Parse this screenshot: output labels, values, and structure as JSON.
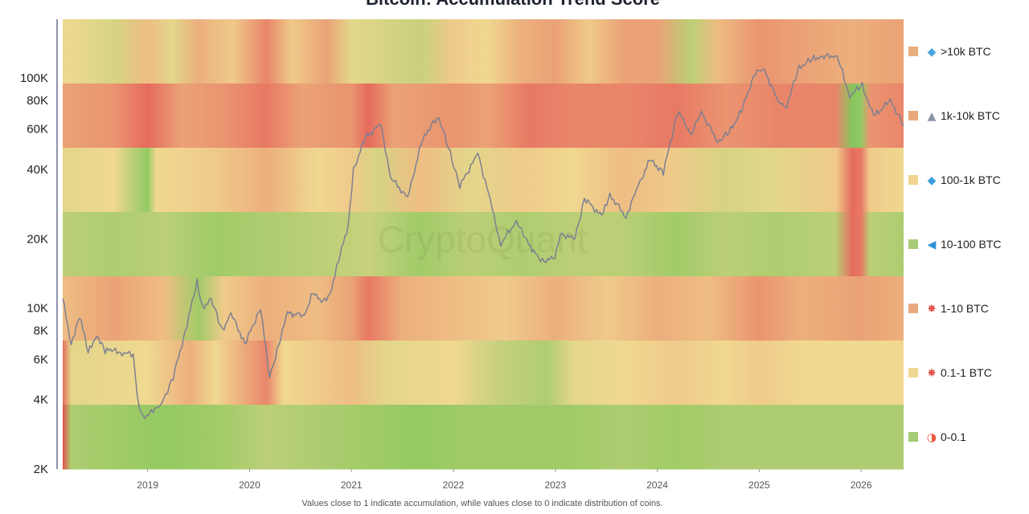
{
  "chart_data": {
    "type": "heatmap",
    "title": "Bitcoin: Accumulation Trend Score",
    "footnote": "Values close to 1 indicate accumulation, while values close to 0 indicate distribution of coins.",
    "watermark": "CryptoQuant",
    "x_range": [
      "2018-03",
      "2026-06"
    ],
    "x_ticks": [
      "2019",
      "2020",
      "2021",
      "2022",
      "2023",
      "2024",
      "2025",
      "2026"
    ],
    "y_scale": "log",
    "y_range": [
      2000,
      180000
    ],
    "y_ticks": [
      {
        "value": 2000,
        "label": "2K"
      },
      {
        "value": 4000,
        "label": "4K"
      },
      {
        "value": 6000,
        "label": "6K"
      },
      {
        "value": 8000,
        "label": "8K"
      },
      {
        "value": 10000,
        "label": "10K"
      },
      {
        "value": 20000,
        "label": "20K"
      },
      {
        "value": 40000,
        "label": "40K"
      },
      {
        "value": 60000,
        "label": "60K"
      },
      {
        "value": 80000,
        "label": "80K"
      },
      {
        "value": 100000,
        "label": "100K"
      }
    ],
    "color_scale": {
      "low": "#e45050",
      "mid": "#f0d890",
      "high": "#6cc24f",
      "domain": [
        0,
        1
      ]
    },
    "rows": [
      {
        "label": ">10k BTC",
        "icon": "whale-icon",
        "legend_color": "#e8ae7e",
        "keys": [
          [
            "2018-03",
            0.5
          ],
          [
            "2018-09",
            0.6
          ],
          [
            "2019-01",
            0.4
          ],
          [
            "2019-04",
            0.55
          ],
          [
            "2019-07",
            0.35
          ],
          [
            "2019-11",
            0.45
          ],
          [
            "2020-03",
            0.2
          ],
          [
            "2020-06",
            0.45
          ],
          [
            "2020-10",
            0.3
          ],
          [
            "2021-01",
            0.55
          ],
          [
            "2021-05",
            0.6
          ],
          [
            "2021-09",
            0.65
          ],
          [
            "2022-01",
            0.45
          ],
          [
            "2022-05",
            0.5
          ],
          [
            "2022-09",
            0.35
          ],
          [
            "2023-01",
            0.3
          ],
          [
            "2023-05",
            0.45
          ],
          [
            "2023-09",
            0.3
          ],
          [
            "2024-01",
            0.3
          ],
          [
            "2024-05",
            0.7
          ],
          [
            "2024-08",
            0.4
          ],
          [
            "2025-01",
            0.25
          ],
          [
            "2025-06",
            0.3
          ],
          [
            "2025-12",
            0.35
          ],
          [
            "2026-06",
            0.3
          ]
        ]
      },
      {
        "label": "1k-10k BTC",
        "icon": "shark-icon",
        "legend_color": "#e8a87a",
        "keys": [
          [
            "2018-03",
            0.3
          ],
          [
            "2018-09",
            0.25
          ],
          [
            "2019-01",
            0.1
          ],
          [
            "2019-05",
            0.3
          ],
          [
            "2019-10",
            0.25
          ],
          [
            "2020-03",
            0.15
          ],
          [
            "2020-07",
            0.3
          ],
          [
            "2021-01",
            0.25
          ],
          [
            "2021-03",
            0.1
          ],
          [
            "2021-06",
            0.3
          ],
          [
            "2022-01",
            0.25
          ],
          [
            "2022-05",
            0.3
          ],
          [
            "2022-10",
            0.15
          ],
          [
            "2023-03",
            0.2
          ],
          [
            "2023-09",
            0.2
          ],
          [
            "2024-03",
            0.15
          ],
          [
            "2024-09",
            0.25
          ],
          [
            "2025-03",
            0.2
          ],
          [
            "2025-10",
            0.2
          ],
          [
            "2025-12",
            0.9
          ],
          [
            "2026-01",
            0.85
          ],
          [
            "2026-02",
            0.25
          ],
          [
            "2026-06",
            0.2
          ]
        ]
      },
      {
        "label": "100-1k BTC",
        "icon": "dolphin-icon",
        "legend_color": "#f0d48f",
        "keys": [
          [
            "2018-03",
            0.55
          ],
          [
            "2018-09",
            0.5
          ],
          [
            "2019-01",
            0.85
          ],
          [
            "2019-02",
            0.5
          ],
          [
            "2019-09",
            0.45
          ],
          [
            "2020-03",
            0.35
          ],
          [
            "2020-09",
            0.5
          ],
          [
            "2021-01",
            0.45
          ],
          [
            "2021-04",
            0.6
          ],
          [
            "2021-09",
            0.4
          ],
          [
            "2022-03",
            0.55
          ],
          [
            "2022-09",
            0.45
          ],
          [
            "2023-03",
            0.5
          ],
          [
            "2023-09",
            0.4
          ],
          [
            "2024-03",
            0.45
          ],
          [
            "2024-09",
            0.6
          ],
          [
            "2025-03",
            0.55
          ],
          [
            "2025-10",
            0.45
          ],
          [
            "2025-12",
            0.1
          ],
          [
            "2026-01",
            0.15
          ],
          [
            "2026-02",
            0.45
          ],
          [
            "2026-06",
            0.5
          ]
        ]
      },
      {
        "label": "10-100 BTC",
        "icon": "fish-icon",
        "legend_color": "#a8cc78",
        "keys": [
          [
            "2018-03",
            0.7
          ],
          [
            "2018-09",
            0.75
          ],
          [
            "2019-03",
            0.7
          ],
          [
            "2019-09",
            0.8
          ],
          [
            "2020-03",
            0.75
          ],
          [
            "2020-09",
            0.7
          ],
          [
            "2021-03",
            0.65
          ],
          [
            "2021-09",
            0.8
          ],
          [
            "2022-03",
            0.7
          ],
          [
            "2022-09",
            0.75
          ],
          [
            "2023-03",
            0.7
          ],
          [
            "2023-09",
            0.7
          ],
          [
            "2024-03",
            0.8
          ],
          [
            "2024-09",
            0.7
          ],
          [
            "2025-03",
            0.75
          ],
          [
            "2025-10",
            0.7
          ],
          [
            "2025-12",
            0.1
          ],
          [
            "2026-01",
            0.15
          ],
          [
            "2026-02",
            0.7
          ],
          [
            "2026-06",
            0.75
          ]
        ]
      },
      {
        "label": "1-10 BTC",
        "icon": "crab-icon",
        "legend_color": "#e8a880",
        "keys": [
          [
            "2018-03",
            0.4
          ],
          [
            "2018-09",
            0.3
          ],
          [
            "2019-03",
            0.4
          ],
          [
            "2019-07",
            0.8
          ],
          [
            "2019-10",
            0.45
          ],
          [
            "2020-03",
            0.35
          ],
          [
            "2020-09",
            0.4
          ],
          [
            "2021-01",
            0.3
          ],
          [
            "2021-03",
            0.15
          ],
          [
            "2021-07",
            0.35
          ],
          [
            "2022-01",
            0.4
          ],
          [
            "2022-07",
            0.45
          ],
          [
            "2023-01",
            0.35
          ],
          [
            "2023-07",
            0.45
          ],
          [
            "2024-01",
            0.35
          ],
          [
            "2024-07",
            0.4
          ],
          [
            "2025-01",
            0.25
          ],
          [
            "2025-06",
            0.35
          ],
          [
            "2026-01",
            0.3
          ],
          [
            "2026-06",
            0.35
          ]
        ]
      },
      {
        "label": "0.1-1 BTC",
        "icon": "crab-icon",
        "legend_color": "#f0d892",
        "keys": [
          [
            "2018-03",
            0.1
          ],
          [
            "2018-04",
            0.55
          ],
          [
            "2019-01",
            0.5
          ],
          [
            "2019-06",
            0.35
          ],
          [
            "2019-09",
            0.5
          ],
          [
            "2020-03",
            0.2
          ],
          [
            "2020-05",
            0.5
          ],
          [
            "2021-01",
            0.4
          ],
          [
            "2021-05",
            0.55
          ],
          [
            "2022-01",
            0.5
          ],
          [
            "2022-06",
            0.65
          ],
          [
            "2022-12",
            0.75
          ],
          [
            "2023-03",
            0.55
          ],
          [
            "2023-09",
            0.5
          ],
          [
            "2024-03",
            0.45
          ],
          [
            "2024-09",
            0.5
          ],
          [
            "2025-01",
            0.45
          ],
          [
            "2025-06",
            0.5
          ],
          [
            "2026-06",
            0.5
          ]
        ]
      },
      {
        "label": "0-0.1",
        "icon": "shrimp-icon",
        "legend_color": "#a4cc74",
        "keys": [
          [
            "2018-03",
            0.0
          ],
          [
            "2018-04",
            0.75
          ],
          [
            "2018-09",
            0.8
          ],
          [
            "2019-03",
            0.85
          ],
          [
            "2019-09",
            0.8
          ],
          [
            "2020-03",
            0.7
          ],
          [
            "2020-09",
            0.75
          ],
          [
            "2021-03",
            0.8
          ],
          [
            "2021-09",
            0.85
          ],
          [
            "2022-03",
            0.8
          ],
          [
            "2022-09",
            0.8
          ],
          [
            "2023-03",
            0.8
          ],
          [
            "2023-09",
            0.75
          ],
          [
            "2024-03",
            0.8
          ],
          [
            "2024-09",
            0.75
          ],
          [
            "2025-03",
            0.75
          ],
          [
            "2025-09",
            0.75
          ],
          [
            "2026-06",
            0.75
          ]
        ]
      }
    ],
    "price_series": {
      "color": "#7d7f92",
      "points": [
        [
          "2018-03-01",
          11000
        ],
        [
          "2018-04-01",
          7000
        ],
        [
          "2018-05-01",
          9300
        ],
        [
          "2018-06-01",
          6400
        ],
        [
          "2018-07-01",
          7700
        ],
        [
          "2018-08-01",
          6500
        ],
        [
          "2018-09-01",
          6600
        ],
        [
          "2018-10-01",
          6400
        ],
        [
          "2018-11-10",
          6300
        ],
        [
          "2018-11-25",
          4000
        ],
        [
          "2018-12-15",
          3300
        ],
        [
          "2019-01-15",
          3600
        ],
        [
          "2019-02-15",
          3700
        ],
        [
          "2019-04-01",
          5000
        ],
        [
          "2019-05-15",
          8000
        ],
        [
          "2019-06-26",
          13000
        ],
        [
          "2019-07-15",
          10000
        ],
        [
          "2019-08-15",
          11000
        ],
        [
          "2019-09-25",
          8000
        ],
        [
          "2019-10-26",
          9500
        ],
        [
          "2019-12-15",
          7000
        ],
        [
          "2020-02-10",
          10000
        ],
        [
          "2020-03-12",
          5000
        ],
        [
          "2020-04-15",
          7000
        ],
        [
          "2020-05-15",
          9500
        ],
        [
          "2020-07-15",
          9300
        ],
        [
          "2020-08-15",
          11800
        ],
        [
          "2020-09-15",
          10500
        ],
        [
          "2020-10-15",
          11500
        ],
        [
          "2020-11-15",
          16000
        ],
        [
          "2020-12-20",
          23000
        ],
        [
          "2021-01-08",
          40000
        ],
        [
          "2021-02-20",
          55000
        ],
        [
          "2021-04-14",
          63000
        ],
        [
          "2021-05-20",
          37000
        ],
        [
          "2021-07-20",
          30000
        ],
        [
          "2021-09-07",
          52000
        ],
        [
          "2021-10-20",
          65000
        ],
        [
          "2021-11-10",
          67000
        ],
        [
          "2021-12-20",
          47000
        ],
        [
          "2022-01-24",
          34000
        ],
        [
          "2022-03-28",
          47000
        ],
        [
          "2022-05-12",
          29000
        ],
        [
          "2022-06-18",
          19000
        ],
        [
          "2022-08-14",
          24000
        ],
        [
          "2022-09-15",
          20000
        ],
        [
          "2022-11-09",
          16000
        ],
        [
          "2022-12-30",
          16500
        ],
        [
          "2023-01-20",
          21000
        ],
        [
          "2023-03-10",
          20000
        ],
        [
          "2023-04-14",
          30000
        ],
        [
          "2023-06-15",
          25000
        ],
        [
          "2023-07-14",
          31000
        ],
        [
          "2023-09-11",
          25000
        ],
        [
          "2023-10-24",
          34000
        ],
        [
          "2023-12-05",
          44000
        ],
        [
          "2024-01-23",
          39000
        ],
        [
          "2024-03-14",
          72000
        ],
        [
          "2024-05-01",
          57000
        ],
        [
          "2024-06-07",
          71000
        ],
        [
          "2024-08-05",
          53000
        ],
        [
          "2024-09-15",
          58000
        ],
        [
          "2024-10-29",
          72000
        ],
        [
          "2024-12-17",
          106000
        ],
        [
          "2025-01-20",
          108000
        ],
        [
          "2025-03-10",
          78000
        ],
        [
          "2025-04-08",
          76000
        ],
        [
          "2025-05-22",
          111000
        ],
        [
          "2025-07-14",
          122000
        ],
        [
          "2025-08-14",
          124000
        ],
        [
          "2025-10-06",
          125000
        ],
        [
          "2025-11-21",
          84000
        ],
        [
          "2026-01-05",
          93000
        ],
        [
          "2026-02-15",
          68000
        ],
        [
          "2026-04-15",
          80000
        ],
        [
          "2026-06-01",
          62000
        ]
      ]
    }
  }
}
